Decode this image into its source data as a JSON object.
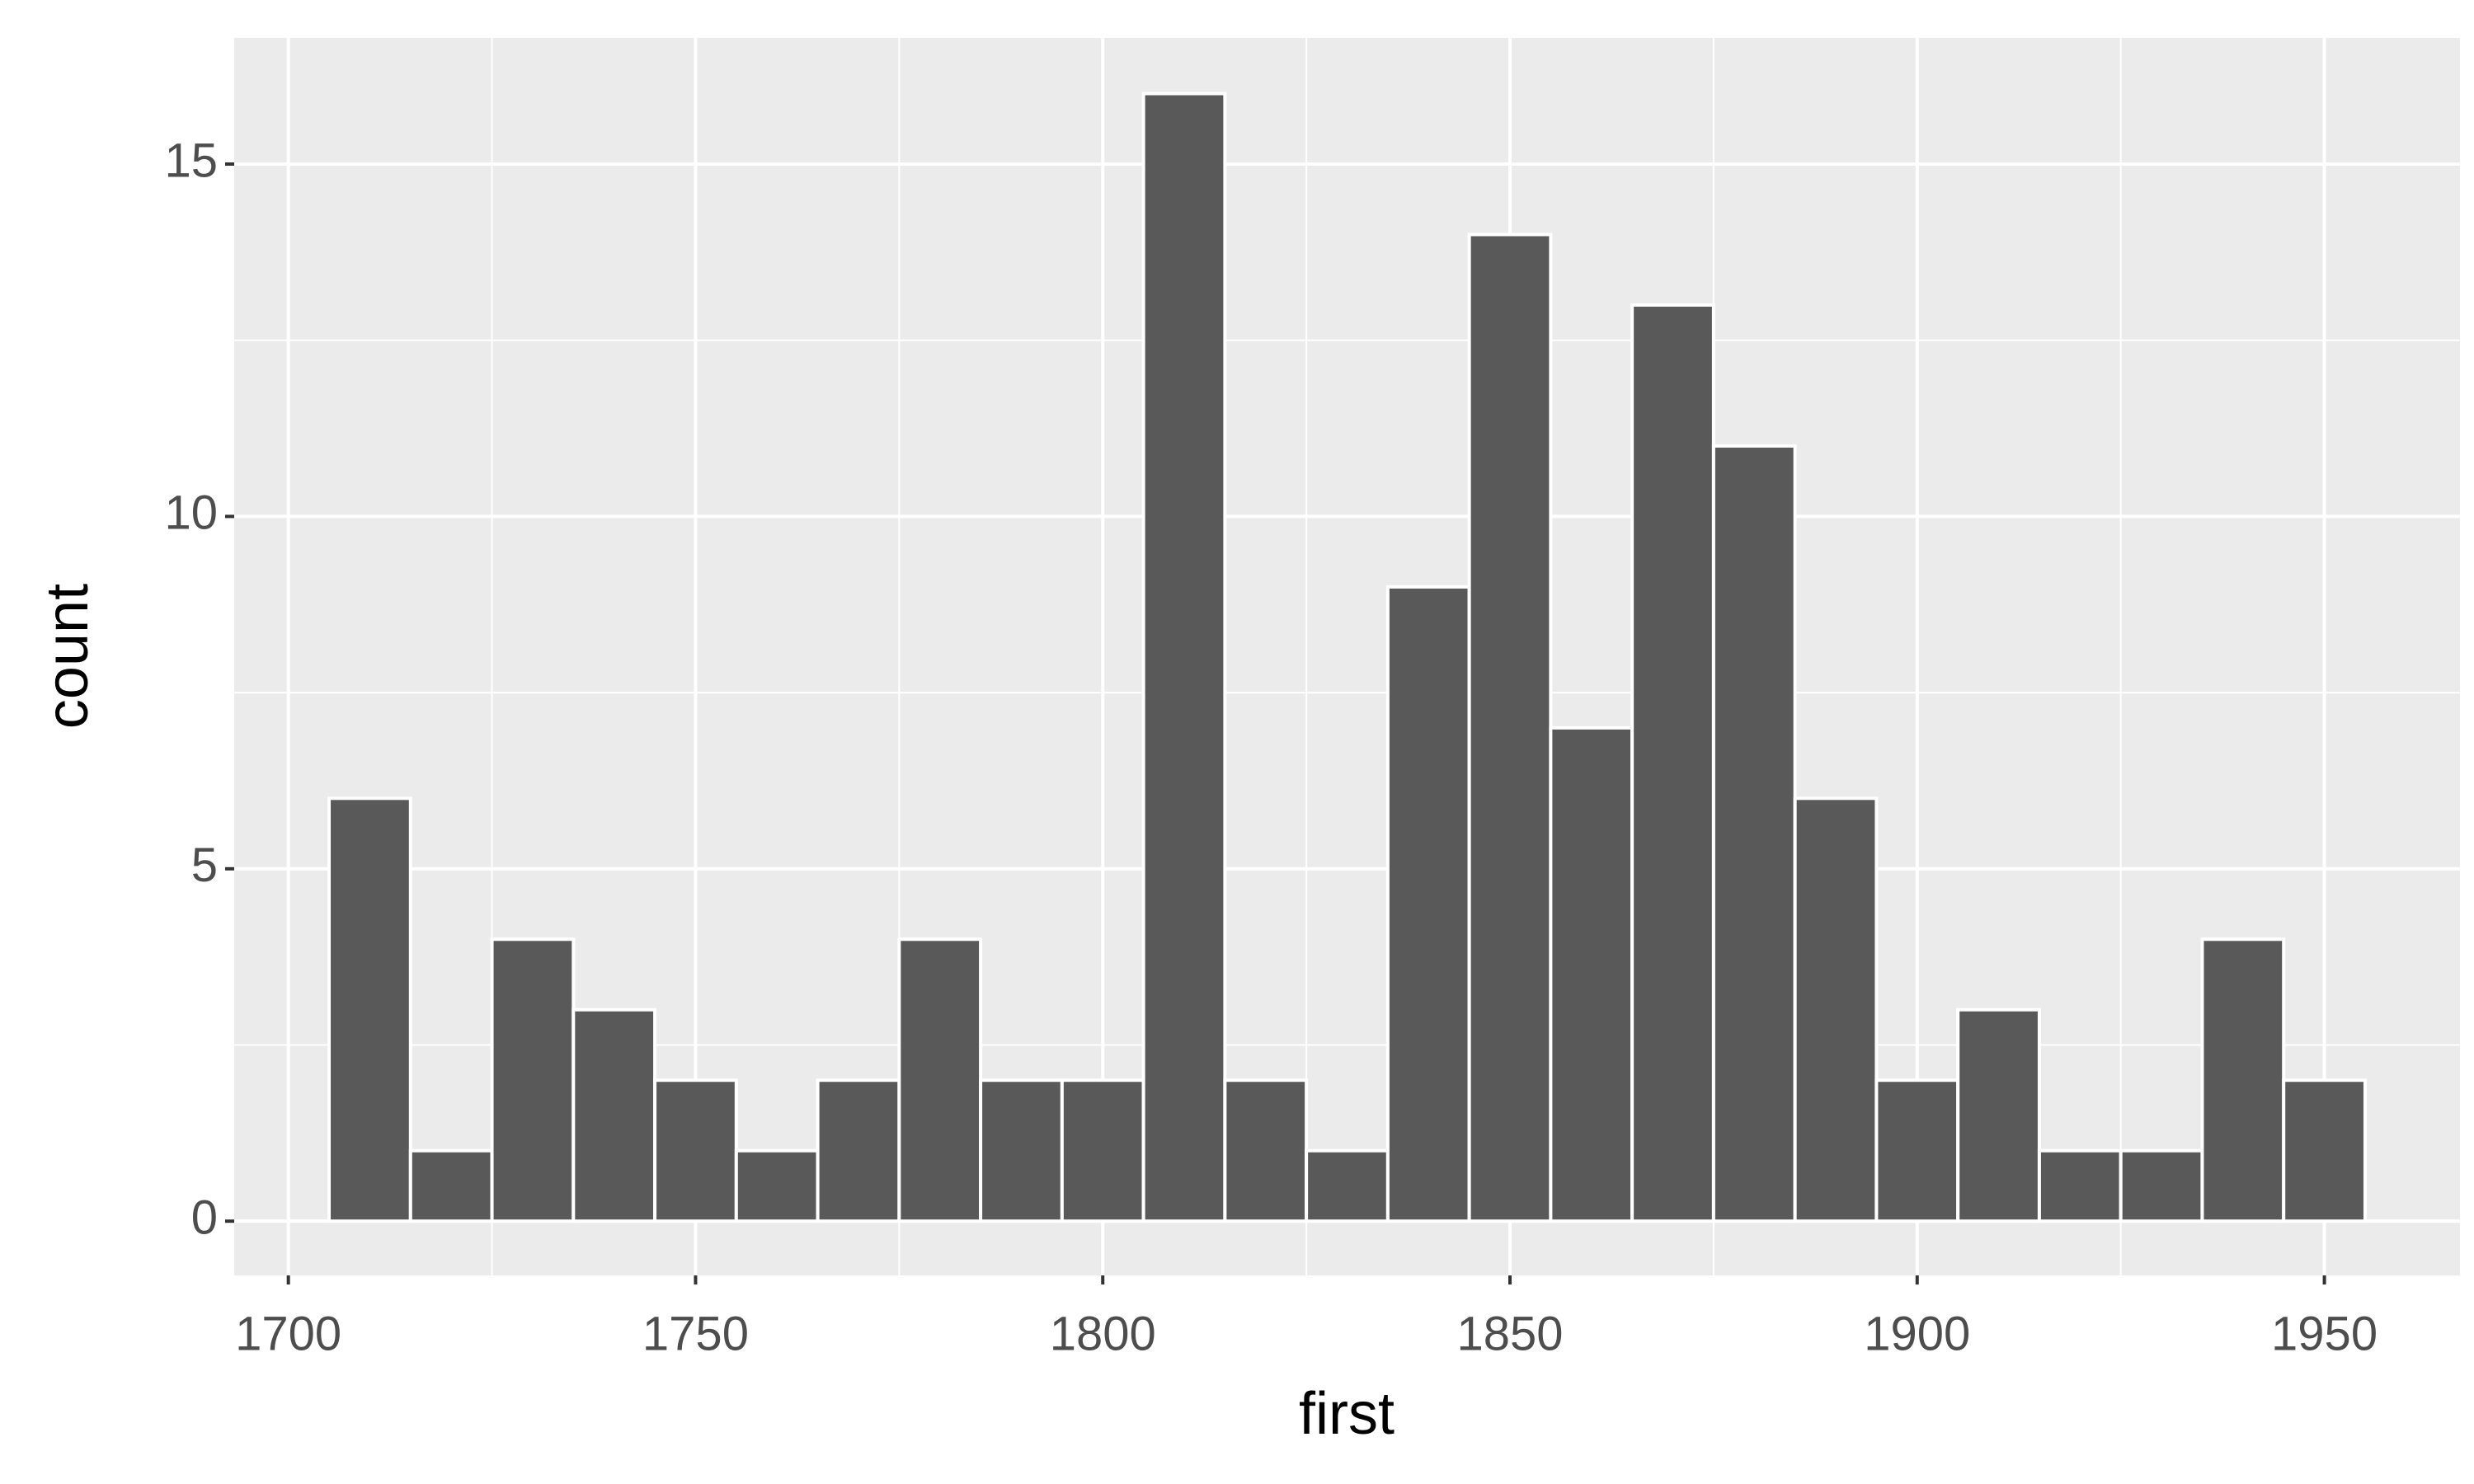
{
  "chart_data": {
    "type": "histogram",
    "x_label": "first",
    "y_label": "count",
    "bins": [
      1705,
      1715,
      1725,
      1735,
      1745,
      1755,
      1765,
      1775,
      1785,
      1795,
      1805,
      1815,
      1825,
      1835,
      1845,
      1855,
      1865,
      1875,
      1885,
      1895,
      1905,
      1915,
      1925,
      1935,
      1945,
      1955
    ],
    "counts": [
      6,
      1,
      4,
      3,
      2,
      1,
      2,
      4,
      2,
      2,
      16,
      2,
      1,
      9,
      14,
      7,
      13,
      11,
      6,
      2,
      3,
      1,
      1,
      4,
      2
    ],
    "color": "#595959",
    "xlim": [
      1693.35,
      1966.65
    ],
    "xticks": [
      1700,
      1750,
      1800,
      1850,
      1900,
      1950
    ],
    "ylim": [
      -0.77,
      16.79
    ],
    "yticks": [
      0,
      5,
      10,
      15
    ],
    "grid": true
  }
}
